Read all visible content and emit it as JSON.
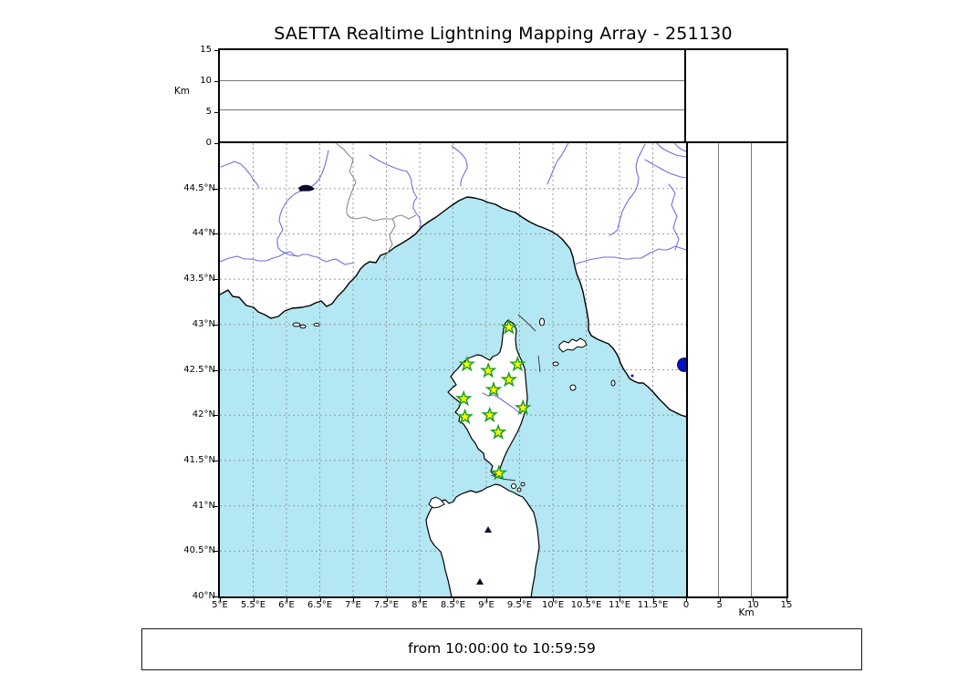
{
  "title": "SAETTA Realtime Lightning Mapping Array - 251130",
  "caption": "from 10:00:00 to 10:59:59",
  "altitude_axis": {
    "unit": "Km",
    "min": 0,
    "max": 15,
    "ticks": [
      0,
      5,
      10,
      15
    ],
    "gridline_values": [
      5,
      10
    ]
  },
  "map": {
    "lon_min": 5,
    "lon_max": 12,
    "lat_min": 40,
    "lat_max": 45,
    "lon_ticks": [
      {
        "v": 5,
        "label": "5°E"
      },
      {
        "v": 5.5,
        "label": "5.5°E"
      },
      {
        "v": 6,
        "label": "6°E"
      },
      {
        "v": 6.5,
        "label": "6.5°E"
      },
      {
        "v": 7,
        "label": "7°E"
      },
      {
        "v": 7.5,
        "label": "7.5°E"
      },
      {
        "v": 8,
        "label": "8°E"
      },
      {
        "v": 8.5,
        "label": "8.5°E"
      },
      {
        "v": 9,
        "label": "9°E"
      },
      {
        "v": 9.5,
        "label": "9.5°E"
      },
      {
        "v": 10,
        "label": "10°E"
      },
      {
        "v": 10.5,
        "label": "10.5°E"
      },
      {
        "v": 11,
        "label": "11°E"
      },
      {
        "v": 11.5,
        "label": "11.5°E"
      }
    ],
    "lat_ticks": [
      {
        "v": 40,
        "label": "40°N"
      },
      {
        "v": 40.5,
        "label": "40.5°N"
      },
      {
        "v": 41,
        "label": "41°N"
      },
      {
        "v": 41.5,
        "label": "41.5°N"
      },
      {
        "v": 42,
        "label": "42°N"
      },
      {
        "v": 42.5,
        "label": "42.5°N"
      },
      {
        "v": 43,
        "label": "43°N"
      },
      {
        "v": 43.5,
        "label": "43.5°N"
      },
      {
        "v": 44,
        "label": "44°N"
      },
      {
        "v": 44.5,
        "label": "44.5°N"
      }
    ]
  },
  "stations": [
    {
      "lon": 9.34,
      "lat": 42.97
    },
    {
      "lon": 8.71,
      "lat": 42.56
    },
    {
      "lon": 9.03,
      "lat": 42.49
    },
    {
      "lon": 9.47,
      "lat": 42.56
    },
    {
      "lon": 9.34,
      "lat": 42.39
    },
    {
      "lon": 9.11,
      "lat": 42.28
    },
    {
      "lon": 8.66,
      "lat": 42.18
    },
    {
      "lon": 9.55,
      "lat": 42.08
    },
    {
      "lon": 9.05,
      "lat": 42.0
    },
    {
      "lon": 8.68,
      "lat": 41.98
    },
    {
      "lon": 9.18,
      "lat": 41.81
    },
    {
      "lon": 9.19,
      "lat": 41.36
    }
  ],
  "colors": {
    "sea": "#b3e7f3",
    "land": "#ffffff",
    "coast": "#000000",
    "river": "#6f6fe0",
    "border": "#8a8a8a",
    "grid": "#999999",
    "lake": "#0011cc",
    "lake_dark": "#0a0a2e",
    "star_fill": "#ffff00",
    "star_edge": "#1e9e1e"
  }
}
